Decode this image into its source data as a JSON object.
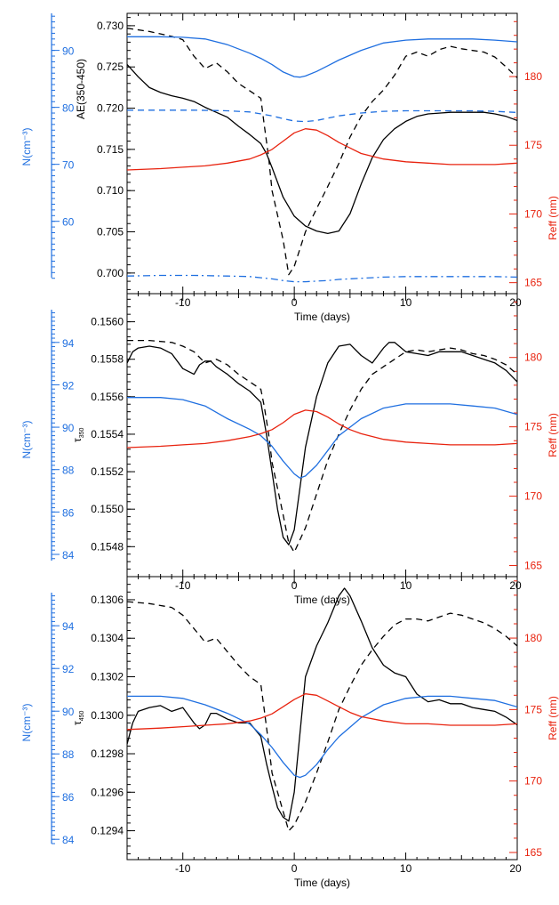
{
  "colors": {
    "black": "#000000",
    "blue": "#1f6fe0",
    "red": "#e8230f"
  },
  "chart_data": [
    {
      "type": "line",
      "xlabel": "Time (days)",
      "ylabel": "AE(350-450)",
      "left_axis_label": "N(cm⁻³)",
      "right_axis_label": "Reff (nm)",
      "xlim": [
        -15,
        20
      ],
      "xticks": [
        "-10",
        "0",
        "10",
        "20"
      ],
      "ylim": [
        0.6975,
        0.7315
      ],
      "yticks": [
        "0.700",
        "0.705",
        "0.710",
        "0.715",
        "0.720",
        "0.725",
        "0.730"
      ],
      "left_ylim": [
        47.3,
        96.5
      ],
      "left_yticks": [
        "60",
        "70",
        "80",
        "90"
      ],
      "right_ylim": [
        164.2,
        184.6
      ],
      "right_yticks": [
        "165",
        "170",
        "175",
        "180"
      ],
      "series": [
        {
          "axis": "main",
          "style": "solid",
          "color": "black",
          "x": [
            -15,
            -14,
            -13,
            -12,
            -11,
            -10,
            -9,
            -8,
            -7,
            -6,
            -5,
            -4,
            -3,
            -2.5,
            -2,
            -1,
            0,
            1,
            2,
            3,
            4,
            5,
            6,
            7,
            8,
            9,
            10,
            11,
            12,
            13,
            14,
            15,
            16,
            17,
            18,
            19,
            20
          ],
          "y": [
            0.7253,
            0.7238,
            0.7225,
            0.7219,
            0.7215,
            0.7212,
            0.7208,
            0.7201,
            0.7195,
            0.7189,
            0.7178,
            0.7168,
            0.7157,
            0.7145,
            0.7128,
            0.7092,
            0.7069,
            0.7057,
            0.7051,
            0.7048,
            0.7051,
            0.7072,
            0.7108,
            0.714,
            0.7162,
            0.7175,
            0.7184,
            0.719,
            0.7193,
            0.7194,
            0.7195,
            0.7195,
            0.7195,
            0.7195,
            0.7193,
            0.719,
            0.7185
          ]
        },
        {
          "axis": "main",
          "style": "dashed",
          "color": "black",
          "x": [
            -15,
            -13,
            -11,
            -10,
            -9,
            -8,
            -7,
            -6,
            -5,
            -4,
            -3,
            -2.7,
            -2.3,
            -2,
            -1,
            -0.5,
            0,
            1,
            2,
            3,
            4,
            5,
            6,
            7,
            8,
            9,
            10,
            11,
            12,
            13,
            14,
            15,
            16,
            17,
            18,
            19,
            20
          ],
          "y": [
            0.7297,
            0.7293,
            0.7287,
            0.7283,
            0.7263,
            0.7248,
            0.7255,
            0.7244,
            0.723,
            0.7221,
            0.7212,
            0.718,
            0.714,
            0.71,
            0.704,
            0.6998,
            0.7008,
            0.705,
            0.7078,
            0.7105,
            0.7133,
            0.7165,
            0.719,
            0.7208,
            0.7222,
            0.724,
            0.7263,
            0.7268,
            0.7263,
            0.7271,
            0.7275,
            0.7272,
            0.727,
            0.7268,
            0.7262,
            0.725,
            0.7237
          ]
        },
        {
          "axis": "left",
          "style": "solid",
          "color": "blue",
          "x": [
            -15,
            -12,
            -10,
            -8,
            -6,
            -4,
            -3,
            -2,
            -1,
            0,
            0.5,
            1,
            2,
            3,
            4,
            6,
            8,
            10,
            12,
            14,
            16,
            18,
            20
          ],
          "y": [
            92.4,
            92.4,
            92.3,
            92.0,
            91.0,
            89.5,
            88.6,
            87.5,
            86.2,
            85.4,
            85.3,
            85.5,
            86.3,
            87.3,
            88.3,
            90.0,
            91.3,
            91.8,
            92.0,
            92.0,
            92.0,
            91.8,
            91.5
          ]
        },
        {
          "axis": "left",
          "style": "dashed",
          "color": "blue",
          "x": [
            -15,
            -12,
            -9,
            -6,
            -4,
            -2,
            -1,
            0,
            1,
            2,
            3,
            4,
            6,
            8,
            10,
            12,
            14,
            16,
            18,
            20
          ],
          "y": [
            79.5,
            79.5,
            79.5,
            79.4,
            79.2,
            78.5,
            78.0,
            77.6,
            77.5,
            77.7,
            78.1,
            78.5,
            79.0,
            79.3,
            79.4,
            79.4,
            79.4,
            79.4,
            79.3,
            79.1
          ]
        },
        {
          "axis": "left",
          "style": "dashdot",
          "color": "blue",
          "x": [
            -15,
            -12,
            -9,
            -6,
            -4,
            -2,
            -1,
            0,
            1,
            2,
            3,
            4,
            6,
            8,
            10,
            12,
            14,
            16,
            18,
            20
          ],
          "y": [
            50.4,
            50.5,
            50.5,
            50.4,
            50.3,
            49.9,
            49.6,
            49.4,
            49.4,
            49.5,
            49.6,
            49.8,
            50.0,
            50.2,
            50.3,
            50.3,
            50.3,
            50.3,
            50.3,
            50.2
          ]
        },
        {
          "axis": "right",
          "style": "solid",
          "color": "red",
          "x": [
            -15,
            -12,
            -10,
            -8,
            -6,
            -4,
            -3,
            -2,
            -1,
            0,
            1,
            2,
            3,
            4,
            5,
            6,
            8,
            10,
            12,
            14,
            16,
            18,
            20
          ],
          "y": [
            173.2,
            173.3,
            173.4,
            173.5,
            173.7,
            174.0,
            174.3,
            174.7,
            175.3,
            175.9,
            176.2,
            176.1,
            175.7,
            175.2,
            174.8,
            174.4,
            174.0,
            173.8,
            173.7,
            173.6,
            173.6,
            173.6,
            173.7
          ]
        }
      ]
    },
    {
      "type": "line",
      "xlabel": "Time (days)",
      "ylabel": "τ350",
      "ylabel_base": "τ",
      "ylabel_sub": "350",
      "left_axis_label": "N(cm⁻³)",
      "right_axis_label": "Reff (nm)",
      "xlim": [
        -15,
        20
      ],
      "xticks": [
        "-10",
        "0",
        "10",
        "20"
      ],
      "ylim": [
        0.15464,
        0.15615
      ],
      "yticks": [
        "0.1548",
        "0.1550",
        "0.1552",
        "0.1554",
        "0.1556",
        "0.1558",
        "0.1560"
      ],
      "left_ylim": [
        82.95,
        96.3
      ],
      "left_yticks": [
        "84",
        "86",
        "88",
        "90",
        "92",
        "94"
      ],
      "right_ylim": [
        164.2,
        184.6
      ],
      "right_yticks": [
        "165",
        "170",
        "175",
        "180"
      ],
      "series": [
        {
          "axis": "main",
          "style": "solid",
          "color": "black",
          "x": [
            -15,
            -14.5,
            -14,
            -13,
            -12,
            -11,
            -10,
            -9,
            -8.5,
            -8,
            -7.5,
            -7,
            -6,
            -5,
            -4,
            -3,
            -2.5,
            -2,
            -1.5,
            -1,
            -0.5,
            0,
            1,
            2,
            3,
            4,
            5,
            6,
            7,
            8,
            8.5,
            9,
            10,
            11,
            12,
            13,
            14,
            15,
            16,
            17,
            18,
            19,
            20
          ],
          "y": [
            0.15578,
            0.15584,
            0.15586,
            0.15587,
            0.15586,
            0.15583,
            0.15575,
            0.15572,
            0.15577,
            0.15579,
            0.15579,
            0.15576,
            0.15572,
            0.15567,
            0.15563,
            0.15557,
            0.1554,
            0.1552,
            0.155,
            0.15485,
            0.15481,
            0.15489,
            0.15533,
            0.1556,
            0.15578,
            0.15587,
            0.15588,
            0.15582,
            0.15578,
            0.15586,
            0.15589,
            0.15589,
            0.15584,
            0.15583,
            0.15582,
            0.15584,
            0.15584,
            0.15584,
            0.15582,
            0.1558,
            0.15578,
            0.15574,
            0.15568
          ]
        },
        {
          "axis": "main",
          "style": "dashed",
          "color": "black",
          "x": [
            -15,
            -13,
            -11,
            -10,
            -9,
            -8,
            -7,
            -6,
            -5,
            -4,
            -3,
            -2.7,
            -2.3,
            -2,
            -1,
            -0.5,
            0,
            1,
            2,
            3,
            4,
            5,
            6,
            7,
            8,
            9,
            10,
            11,
            12,
            13,
            14,
            15,
            16,
            17,
            18,
            19,
            20
          ],
          "y": [
            0.1559,
            0.1559,
            0.15589,
            0.15587,
            0.15584,
            0.15578,
            0.1558,
            0.15577,
            0.15572,
            0.15568,
            0.15564,
            0.15555,
            0.1554,
            0.15525,
            0.15497,
            0.15482,
            0.15477,
            0.1549,
            0.15508,
            0.15526,
            0.1554,
            0.15553,
            0.15564,
            0.15572,
            0.15576,
            0.1558,
            0.15584,
            0.15585,
            0.15584,
            0.15585,
            0.15586,
            0.15585,
            0.15583,
            0.15582,
            0.1558,
            0.15577,
            0.15572
          ]
        },
        {
          "axis": "left",
          "style": "solid",
          "color": "blue",
          "x": [
            -15,
            -12,
            -10,
            -8,
            -6,
            -4,
            -3,
            -2,
            -1,
            0,
            0.5,
            1,
            2,
            3,
            4,
            6,
            8,
            10,
            12,
            14,
            16,
            18,
            20
          ],
          "y": [
            91.4,
            91.4,
            91.3,
            91.0,
            90.4,
            89.9,
            89.6,
            89.1,
            88.4,
            87.8,
            87.6,
            87.7,
            88.2,
            88.9,
            89.6,
            90.4,
            90.9,
            91.1,
            91.1,
            91.1,
            91.0,
            90.9,
            90.6
          ]
        },
        {
          "axis": "right",
          "style": "solid",
          "color": "red",
          "x": [
            -15,
            -12,
            -10,
            -8,
            -6,
            -4,
            -3,
            -2,
            -1,
            0,
            1,
            2,
            3,
            4,
            5,
            6,
            8,
            10,
            12,
            14,
            16,
            18,
            20
          ],
          "y": [
            173.5,
            173.6,
            173.7,
            173.8,
            174.0,
            174.3,
            174.5,
            174.8,
            175.3,
            175.9,
            176.2,
            176.1,
            175.7,
            175.2,
            174.8,
            174.5,
            174.1,
            173.9,
            173.8,
            173.7,
            173.7,
            173.7,
            173.8
          ]
        }
      ]
    },
    {
      "type": "line",
      "xlabel": "Time (days)",
      "ylabel": "τ450",
      "ylabel_base": "τ",
      "ylabel_sub": "450",
      "left_axis_label": "N(cm⁻³)",
      "right_axis_label": "Reff (nm)",
      "xlim": [
        -15,
        20
      ],
      "xticks": [
        "-10",
        "0",
        "10",
        "20"
      ],
      "ylim": [
        0.12925,
        0.13072
      ],
      "yticks": [
        "0.1294",
        "0.1296",
        "0.1298",
        "0.1300",
        "0.1302",
        "0.1304",
        "0.1306"
      ],
      "left_ylim": [
        83.05,
        96.3
      ],
      "left_yticks": [
        "84",
        "86",
        "88",
        "90",
        "92",
        "94"
      ],
      "right_ylim": [
        164.5,
        184.3
      ],
      "right_yticks": [
        "165",
        "170",
        "175",
        "180"
      ],
      "series": [
        {
          "axis": "main",
          "style": "solid",
          "color": "black",
          "x": [
            -15,
            -14.5,
            -14,
            -13,
            -12,
            -11,
            -10,
            -9,
            -8.5,
            -8,
            -7.5,
            -7,
            -6,
            -5,
            -4,
            -3,
            -2.5,
            -2,
            -1.5,
            -1,
            -0.5,
            0,
            1,
            2,
            3,
            4,
            4.5,
            5,
            6,
            7,
            8,
            9,
            10,
            11,
            12,
            13,
            14,
            15,
            16,
            17,
            18,
            19,
            20
          ],
          "y": [
            0.12985,
            0.12996,
            0.13002,
            0.13004,
            0.13005,
            0.13002,
            0.13004,
            0.12996,
            0.12993,
            0.12995,
            0.13001,
            0.13001,
            0.12998,
            0.12996,
            0.12996,
            0.12989,
            0.12975,
            0.12963,
            0.12952,
            0.12947,
            0.12945,
            0.1296,
            0.1302,
            0.13036,
            0.13048,
            0.13062,
            0.13066,
            0.13062,
            0.13049,
            0.13035,
            0.13026,
            0.13022,
            0.1302,
            0.13011,
            0.13007,
            0.13008,
            0.13006,
            0.13006,
            0.13004,
            0.13003,
            0.13002,
            0.12999,
            0.12995
          ]
        },
        {
          "axis": "main",
          "style": "dashed",
          "color": "black",
          "x": [
            -15,
            -13,
            -11,
            -10,
            -9,
            -8,
            -7,
            -6,
            -5,
            -4,
            -3,
            -2.7,
            -2.3,
            -2,
            -1,
            -0.5,
            0,
            1,
            2,
            3,
            4,
            5,
            6,
            7,
            8,
            9,
            10,
            11,
            12,
            13,
            14,
            15,
            16,
            17,
            18,
            19,
            20
          ],
          "y": [
            0.13059,
            0.13058,
            0.13056,
            0.13052,
            0.13045,
            0.13038,
            0.1304,
            0.13033,
            0.13026,
            0.1302,
            0.13016,
            0.13003,
            0.12985,
            0.1297,
            0.1295,
            0.1294,
            0.12943,
            0.12955,
            0.1297,
            0.12986,
            0.13003,
            0.13015,
            0.13026,
            0.13034,
            0.13041,
            0.13047,
            0.1305,
            0.1305,
            0.13049,
            0.13051,
            0.13053,
            0.13052,
            0.1305,
            0.13048,
            0.13045,
            0.13041,
            0.13036
          ]
        },
        {
          "axis": "left",
          "style": "solid",
          "color": "blue",
          "x": [
            -15,
            -12,
            -10,
            -8,
            -6,
            -4,
            -3,
            -2,
            -1,
            0,
            0.5,
            1,
            2,
            3,
            4,
            6,
            8,
            10,
            12,
            14,
            16,
            18,
            20
          ],
          "y": [
            90.7,
            90.7,
            90.6,
            90.3,
            89.9,
            89.4,
            88.9,
            88.3,
            87.6,
            87.0,
            86.9,
            87.0,
            87.5,
            88.2,
            88.8,
            89.7,
            90.3,
            90.6,
            90.7,
            90.7,
            90.6,
            90.5,
            90.2
          ]
        },
        {
          "axis": "right",
          "style": "solid",
          "color": "red",
          "x": [
            -15,
            -12,
            -10,
            -8,
            -6,
            -4,
            -3,
            -2,
            -1,
            0,
            1,
            2,
            3,
            4,
            5,
            6,
            8,
            10,
            12,
            14,
            16,
            18,
            20
          ],
          "y": [
            173.6,
            173.7,
            173.8,
            173.9,
            174.0,
            174.2,
            174.4,
            174.7,
            175.2,
            175.7,
            176.1,
            176.0,
            175.6,
            175.2,
            174.8,
            174.5,
            174.2,
            174.0,
            174.0,
            173.9,
            173.9,
            173.9,
            174.0
          ]
        }
      ]
    }
  ]
}
